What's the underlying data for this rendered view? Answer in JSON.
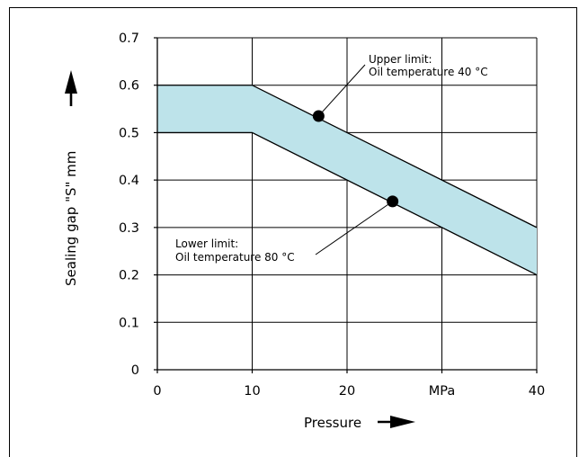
{
  "chart_data": {
    "type": "area",
    "xlabel": "Pressure",
    "ylabel": "Sealing gap \"S\"   mm",
    "xlim": [
      0,
      40
    ],
    "ylim": [
      0,
      0.7
    ],
    "x_ticks": [
      0,
      10,
      20,
      30,
      40
    ],
    "x_tick_labels": [
      "0",
      "10",
      "20",
      "MPa",
      "40"
    ],
    "y_ticks": [
      0,
      0.1,
      0.2,
      0.3,
      0.4,
      0.5,
      0.6,
      0.7
    ],
    "y_tick_labels": [
      "0",
      "0.1",
      "0.2",
      "0.3",
      "0.4",
      "0.5",
      "0.6",
      "0.7"
    ],
    "grid": true,
    "fill_color": "#bde3ea",
    "series": [
      {
        "x": [
          0,
          10,
          40
        ],
        "values": [
          0.6,
          0.6,
          0.3
        ]
      },
      {
        "x": [
          0,
          10,
          40
        ],
        "values": [
          0.5,
          0.5,
          0.2
        ]
      }
    ],
    "markers": [
      {
        "x": 17,
        "y": 0.535
      },
      {
        "x": 24.8,
        "y": 0.355
      }
    ],
    "annotations": [
      {
        "lines": [
          "Upper limit:",
          "Oil temperature 40 °C"
        ]
      },
      {
        "lines": [
          "Lower limit:",
          "Oil temperature 80 °C"
        ]
      }
    ]
  }
}
